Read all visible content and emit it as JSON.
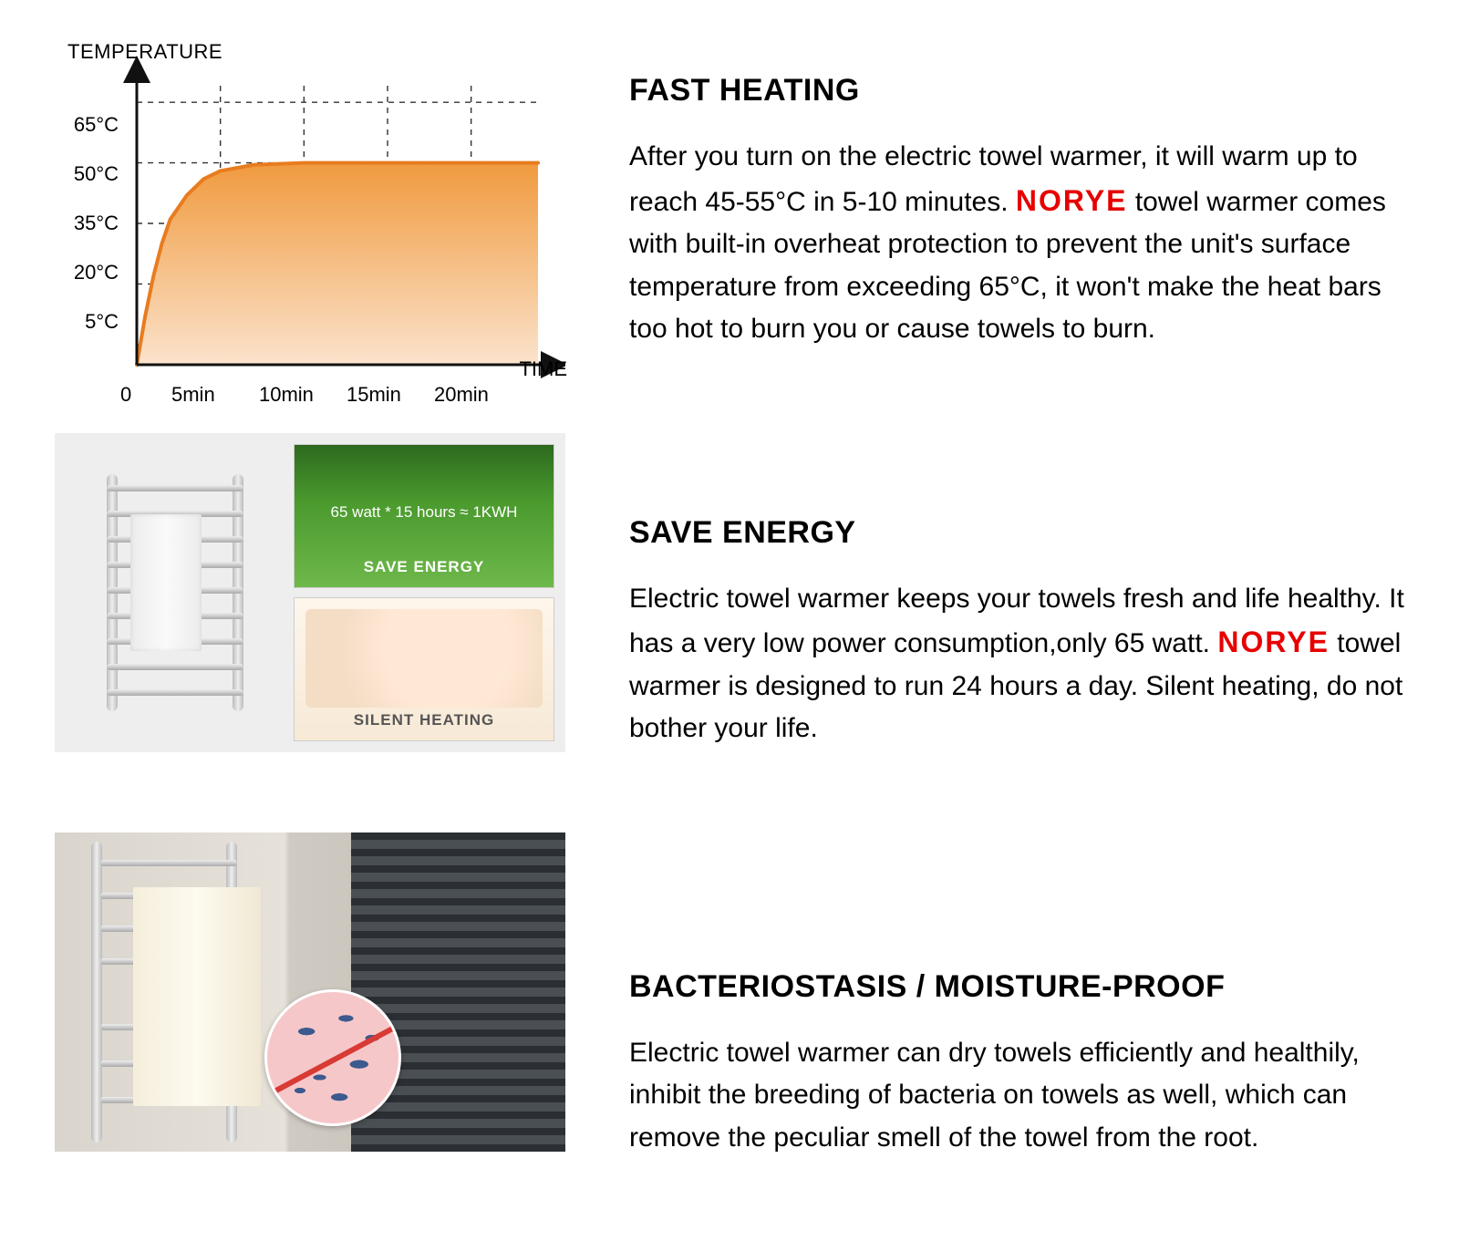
{
  "chart": {
    "type": "line-area",
    "y_axis_title": "TEMPERATURE",
    "x_axis_title": "TIME",
    "y_ticks": [
      "65°C",
      "50°C",
      "35°C",
      "20°C",
      "5°C"
    ],
    "y_tick_values": [
      65,
      50,
      35,
      20,
      5
    ],
    "x_ticks": [
      "0",
      "5min",
      "10min",
      "15min",
      "20min"
    ],
    "x_tick_values": [
      0,
      5,
      10,
      15,
      20
    ],
    "plateau_value": 50,
    "curve_points_minutes_temp": [
      [
        0,
        0
      ],
      [
        0.5,
        12
      ],
      [
        1,
        22
      ],
      [
        1.5,
        30
      ],
      [
        2,
        36
      ],
      [
        3,
        42
      ],
      [
        4,
        46
      ],
      [
        5,
        48
      ],
      [
        7,
        49.5
      ],
      [
        10,
        50
      ],
      [
        15,
        50
      ],
      [
        20,
        50
      ],
      [
        24,
        50
      ]
    ],
    "line_color": "#e87c1f",
    "line_width": 4,
    "area_gradient_top": "#f09a3e",
    "area_gradient_bottom": "#fbe3cc",
    "axis_color": "#111111",
    "grid_color": "#333333",
    "grid_dash": "6,6",
    "background_color": "#ffffff",
    "label_fontsize": 22,
    "title_fontsize": 22,
    "xlim": [
      0,
      24
    ],
    "ylim": [
      0,
      70
    ]
  },
  "sections": {
    "s1": {
      "title": "FAST HEATING",
      "body_pre": "After you turn on the electric towel warmer, it will warm up to reach 45-55°C in 5-10 minutes.  ",
      "brand": "NORYE",
      "body_post": "  towel warmer comes with built-in overheat protection to prevent the unit's surface temperature from exceeding 65°C, it won't make the heat bars too hot to burn you or cause towels to burn."
    },
    "s2": {
      "title": "SAVE ENERGY",
      "body_pre": "Electric towel warmer keeps your towels fresh and life healthy. It has a very low power consumption,only 65 watt.  ",
      "brand": "NORYE",
      "body_post": " towel warmer is designed to run 24 hours a day. Silent heating, do not bother your life.",
      "card1_formula": "65 watt * 15 hours ≈ 1KWH",
      "card1_tag": "SAVE ENERGY",
      "card2_tag": "SILENT HEATING"
    },
    "s3": {
      "title": "BACTERIOSTASIS / MOISTURE-PROOF",
      "body": "Electric towel warmer can dry towels efficiently and healthily, inhibit the breeding of bacteria on towels as well, which can remove the peculiar smell of the towel from the root."
    }
  },
  "colors": {
    "brand_red": "#e60000",
    "text": "#000000"
  }
}
